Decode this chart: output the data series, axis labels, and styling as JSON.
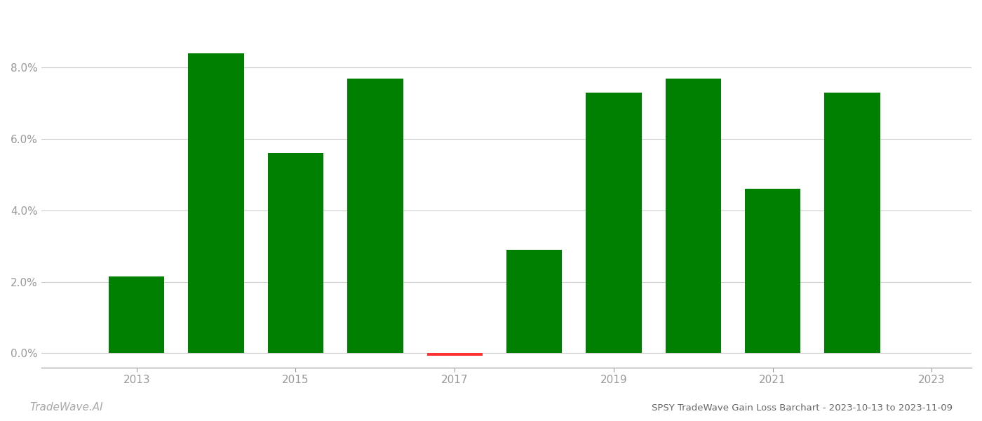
{
  "years": [
    2013,
    2014,
    2015,
    2016,
    2017,
    2018,
    2019,
    2020,
    2021,
    2022
  ],
  "values": [
    0.0215,
    0.084,
    0.056,
    0.077,
    -0.0008,
    0.029,
    0.073,
    0.077,
    0.046,
    0.073
  ],
  "bar_colors": [
    "#008000",
    "#008000",
    "#008000",
    "#008000",
    "#ff3333",
    "#008000",
    "#008000",
    "#008000",
    "#008000",
    "#008000"
  ],
  "title": "SPSY TradeWave Gain Loss Barchart - 2023-10-13 to 2023-11-09",
  "watermark": "TradeWave.AI",
  "xlim": [
    2011.8,
    2023.5
  ],
  "ylim": [
    -0.004,
    0.096
  ],
  "ytick_values": [
    0.0,
    0.02,
    0.04,
    0.06,
    0.08
  ],
  "xtick_values": [
    2013,
    2015,
    2017,
    2019,
    2021,
    2023
  ],
  "background_color": "#ffffff",
  "grid_color": "#cccccc",
  "axis_label_color": "#999999",
  "title_color": "#666666",
  "watermark_color": "#aaaaaa",
  "bar_width": 0.7
}
